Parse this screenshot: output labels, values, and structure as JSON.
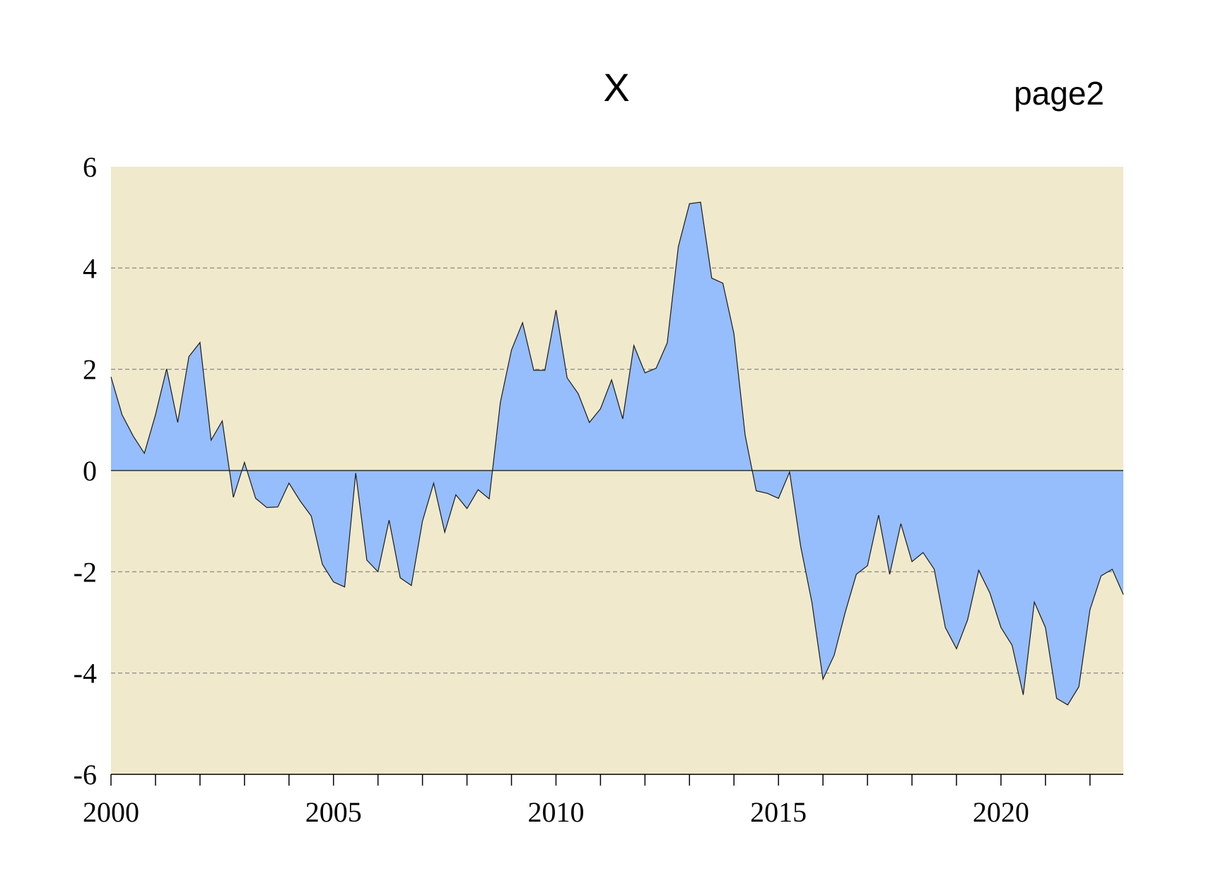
{
  "chart_data": {
    "type": "area",
    "title": "X",
    "page_label": "page2",
    "xlabel": "",
    "ylabel": "",
    "ylim": [
      -6,
      6
    ],
    "xlim": [
      2000.0,
      2022.75
    ],
    "y_ticks": [
      -6,
      -4,
      -2,
      0,
      2,
      4,
      6
    ],
    "y_tick_labels": [
      "-6",
      "-4",
      "-2",
      "0",
      "2",
      "4",
      "6"
    ],
    "x_major_ticks": [
      2000,
      2005,
      2010,
      2015,
      2020
    ],
    "x_tick_labels": [
      "2000",
      "2005",
      "2010",
      "2015",
      "2020"
    ],
    "x_minor_step": 1,
    "grid": {
      "horizontal": true,
      "style": "dashed"
    },
    "colors": {
      "plot_background": "#f0e9cb",
      "area_fill": "#96bdfc",
      "outline": "#1a1a1a",
      "grid": "#7f7f7f"
    },
    "frequency": "quarterly",
    "x": [
      2000.0,
      2000.25,
      2000.5,
      2000.75,
      2001.0,
      2001.25,
      2001.5,
      2001.75,
      2002.0,
      2002.25,
      2002.5,
      2002.75,
      2003.0,
      2003.25,
      2003.5,
      2003.75,
      2004.0,
      2004.25,
      2004.5,
      2004.75,
      2005.0,
      2005.25,
      2005.5,
      2005.75,
      2006.0,
      2006.25,
      2006.5,
      2006.75,
      2007.0,
      2007.25,
      2007.5,
      2007.75,
      2008.0,
      2008.25,
      2008.5,
      2008.75,
      2009.0,
      2009.25,
      2009.5,
      2009.75,
      2010.0,
      2010.25,
      2010.5,
      2010.75,
      2011.0,
      2011.25,
      2011.5,
      2011.75,
      2012.0,
      2012.25,
      2012.5,
      2012.75,
      2013.0,
      2013.25,
      2013.5,
      2013.75,
      2014.0,
      2014.25,
      2014.5,
      2014.75,
      2015.0,
      2015.25,
      2015.5,
      2015.75,
      2016.0,
      2016.25,
      2016.5,
      2016.75,
      2017.0,
      2017.25,
      2017.5,
      2017.75,
      2018.0,
      2018.25,
      2018.5,
      2018.75,
      2019.0,
      2019.25,
      2019.5,
      2019.75,
      2020.0,
      2020.25,
      2020.5,
      2020.75,
      2021.0,
      2021.25,
      2021.5,
      2021.75,
      2022.0,
      2022.25,
      2022.5,
      2022.75
    ],
    "series": [
      {
        "values": [
          1.85,
          1.1,
          0.68,
          0.34,
          1.1,
          2.01,
          0.95,
          2.25,
          2.53,
          0.6,
          0.98,
          -0.53,
          0.16,
          -0.55,
          -0.73,
          -0.72,
          -0.25,
          -0.6,
          -0.9,
          -1.85,
          -2.2,
          -2.3,
          -0.05,
          -1.77,
          -2.0,
          -0.98,
          -2.12,
          -2.27,
          -1.0,
          -0.25,
          -1.22,
          -0.48,
          -0.75,
          -0.38,
          -0.56,
          1.35,
          2.38,
          2.92,
          1.98,
          1.98,
          3.17,
          1.83,
          1.52,
          0.95,
          1.22,
          1.79,
          1.02,
          2.47,
          1.93,
          2.02,
          2.52,
          4.42,
          5.27,
          5.3,
          3.8,
          3.7,
          2.7,
          0.7,
          -0.4,
          -0.45,
          -0.55,
          -0.03,
          -1.5,
          -2.6,
          -4.12,
          -3.65,
          -2.8,
          -2.05,
          -1.88,
          -0.88,
          -2.05,
          -1.05,
          -1.8,
          -1.62,
          -1.95,
          -3.1,
          -3.52,
          -2.95,
          -1.97,
          -2.42,
          -3.1,
          -3.45,
          -4.43,
          -2.6,
          -3.1,
          -4.5,
          -4.63,
          -4.27,
          -2.75,
          -2.08,
          -1.95,
          -2.45
        ]
      }
    ]
  }
}
